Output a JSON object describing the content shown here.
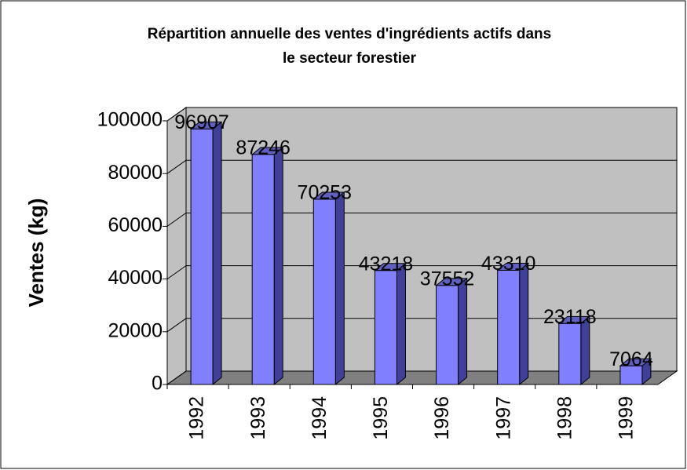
{
  "chart_data": {
    "type": "bar3d",
    "title": [
      "Répartition annuelle des ventes d'ingrédients actifs dans",
      "le secteur forestier"
    ],
    "y_label": "Ventes (kg)",
    "categories": [
      "1992",
      "1993",
      "1994",
      "1995",
      "1996",
      "1997",
      "1998",
      "1999"
    ],
    "values": [
      96907,
      87246,
      70253,
      43218,
      37552,
      43310,
      23118,
      7064
    ],
    "color": "#8080ff",
    "ylim": [
      0,
      100000
    ],
    "yticks": [
      0,
      20000,
      40000,
      60000,
      80000,
      100000
    ],
    "grid": true
  }
}
